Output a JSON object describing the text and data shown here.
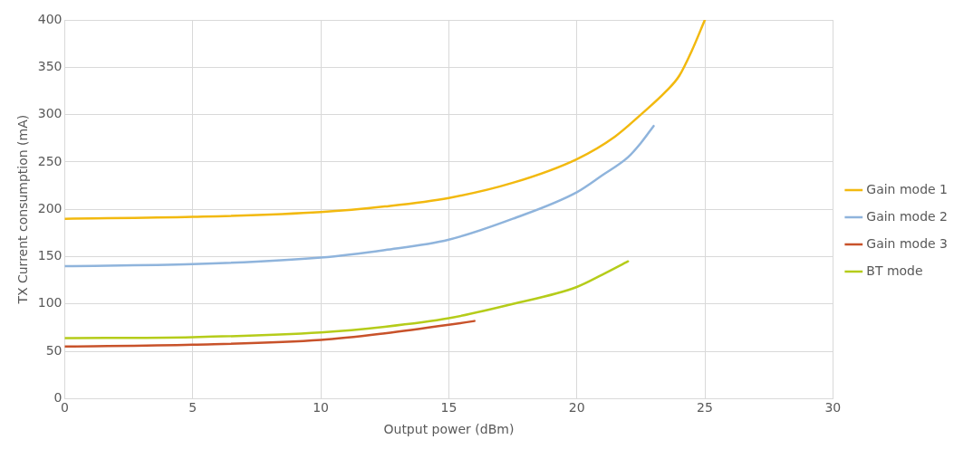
{
  "chart_data": {
    "type": "line",
    "xlabel": "Output power (dBm)",
    "ylabel": "TX Current consumption (mA)",
    "xlim": [
      0,
      30
    ],
    "xticks": [
      0,
      5,
      10,
      15,
      20,
      25,
      30
    ],
    "ylim": [
      0,
      400
    ],
    "yticks": [
      0,
      50,
      100,
      150,
      200,
      250,
      300,
      350,
      400
    ],
    "grid": true,
    "legend": "right",
    "marker": "none",
    "series": [
      {
        "name": "Gain mode 1",
        "color": "#f2b90f",
        "x": [
          0,
          5,
          10,
          12.5,
          15,
          17.5,
          20,
          21.5,
          22.5,
          23.5,
          24,
          24.5,
          25
        ],
        "values": [
          190,
          192,
          197,
          203,
          212,
          228,
          253,
          277,
          300,
          325,
          341,
          368,
          400
        ]
      },
      {
        "name": "Gain mode 2",
        "color": "#8fb4dc",
        "x": [
          0,
          5,
          10,
          12.5,
          15,
          17.5,
          20,
          21,
          22,
          22.5,
          23
        ],
        "values": [
          140,
          142,
          149,
          157,
          168,
          190,
          218,
          236,
          255,
          270,
          288
        ]
      },
      {
        "name": "Gain mode 3",
        "color": "#c8522a",
        "x": [
          0,
          5,
          10,
          12.5,
          15,
          16
        ],
        "values": [
          55,
          57,
          62,
          69,
          78,
          82
        ]
      },
      {
        "name": "BT mode",
        "color": "#b5cc1a",
        "x": [
          0,
          5,
          10,
          12.5,
          15,
          17.5,
          20,
          21,
          22
        ],
        "values": [
          64,
          65,
          70,
          76,
          85,
          100,
          118,
          131,
          145
        ]
      }
    ]
  }
}
